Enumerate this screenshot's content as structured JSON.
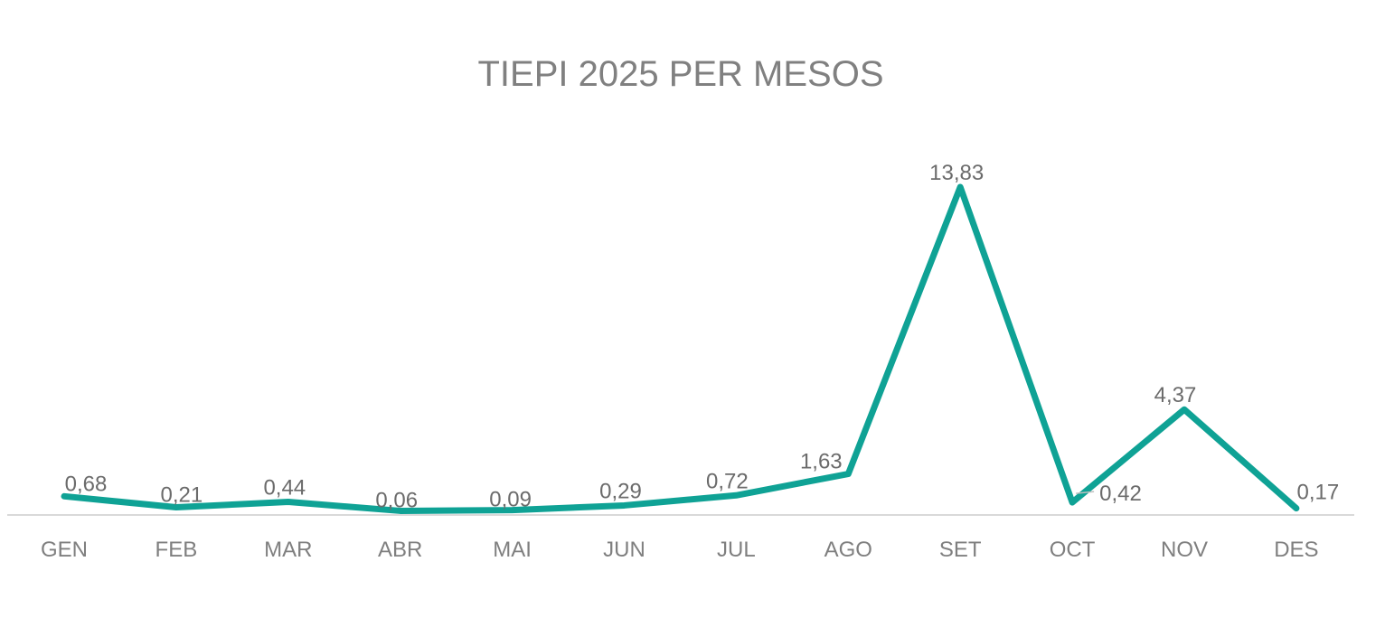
{
  "chart_data": {
    "type": "line",
    "title": "TIEPI 2025 PER MESOS",
    "xlabel": "",
    "ylabel": "",
    "categories": [
      "GEN",
      "FEB",
      "MAR",
      "ABR",
      "MAI",
      "JUN",
      "JUL",
      "AGO",
      "SET",
      "OCT",
      "NOV",
      "DES"
    ],
    "series": [
      {
        "values": [
          0.68,
          0.21,
          0.44,
          0.06,
          0.09,
          0.29,
          0.72,
          1.63,
          13.83,
          0.42,
          4.37,
          0.17
        ],
        "labels": [
          "0,68",
          "0,21",
          "0,44",
          "0,06",
          "0,09",
          "0,29",
          "0,72",
          "1,63",
          "13,83",
          "0,42",
          "4,37",
          "0,17"
        ],
        "color": "#0FA295"
      }
    ],
    "ylim": [
      0,
      13.83
    ],
    "grid": false,
    "legend": "none",
    "axis_color": "#d9d9d9"
  }
}
